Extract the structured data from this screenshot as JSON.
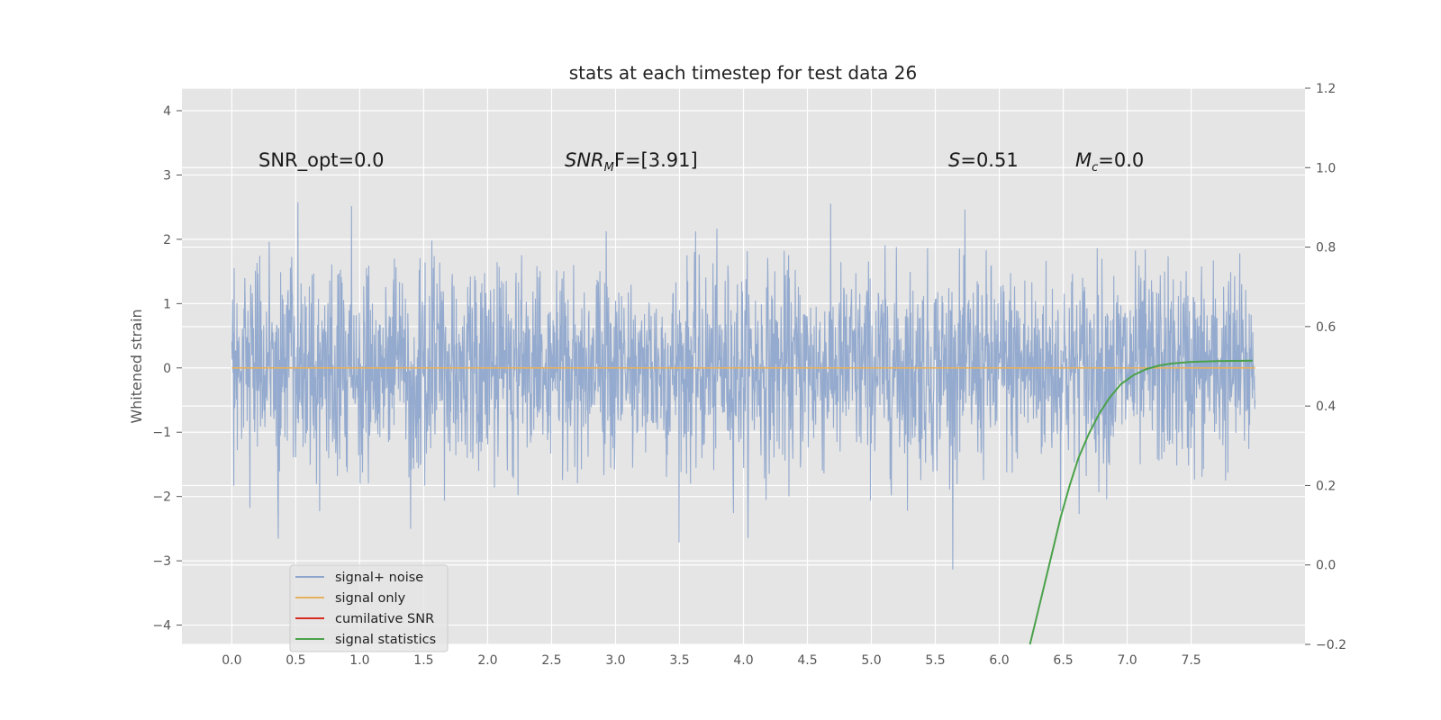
{
  "chart_data": {
    "type": "line",
    "title": "stats at each timestep for test data 26",
    "ylabel": "Whitened strain",
    "xlabel": "",
    "x_range": [
      0,
      8
    ],
    "xlim": [
      -0.39,
      8.39
    ],
    "ylim": [
      -4.3,
      4.35
    ],
    "y2lim": [
      -0.2,
      1.2
    ],
    "x_ticks": [
      "0.0",
      "0.5",
      "1.0",
      "1.5",
      "2.0",
      "2.5",
      "3.0",
      "3.5",
      "4.0",
      "4.5",
      "5.0",
      "5.5",
      "6.0",
      "6.5",
      "7.0",
      "7.5"
    ],
    "y_ticks": [
      "4",
      "3",
      "2",
      "1",
      "0",
      "−1",
      "−2",
      "−3",
      "−4"
    ],
    "y2_ticks": [
      "1.2",
      "1.0",
      "0.8",
      "0.6",
      "0.4",
      "0.2",
      "0.0",
      "−0.2"
    ],
    "grid": true,
    "legend_position": "lower-left",
    "annotations": [
      {
        "key": "snr_opt",
        "text": "SNR_opt=0.0"
      },
      {
        "key": "snr_mf",
        "base": "SNR",
        "sub": "M",
        "rest": "F=[3.91]"
      },
      {
        "key": "s",
        "italic": "S",
        "rest": "=0.51"
      },
      {
        "key": "mc",
        "base": "M",
        "sub": "c",
        "rest": "=0.0"
      }
    ],
    "series": [
      {
        "name": "signal+ noise",
        "color": "#8fa6cc",
        "kind": "noise",
        "amplitude_std": 0.78,
        "axis": "left"
      },
      {
        "name": "signal only",
        "color": "#e6b15f",
        "kind": "constant",
        "value": 0.0,
        "axis": "left"
      },
      {
        "name": "cumilative SNR",
        "color": "#d62d20",
        "kind": "hidden",
        "axis": "right"
      },
      {
        "name": "signal statistics",
        "color": "#4aa14a",
        "axis": "right",
        "x": [
          6.24,
          6.3,
          6.36,
          6.42,
          6.48,
          6.55,
          6.62,
          6.7,
          6.78,
          6.86,
          6.95,
          7.05,
          7.15,
          7.25,
          7.35,
          7.5,
          7.7,
          7.98
        ],
        "y": [
          -0.2,
          -0.12,
          -0.04,
          0.04,
          0.12,
          0.2,
          0.27,
          0.33,
          0.38,
          0.42,
          0.455,
          0.478,
          0.493,
          0.502,
          0.507,
          0.511,
          0.513,
          0.514
        ]
      }
    ]
  }
}
